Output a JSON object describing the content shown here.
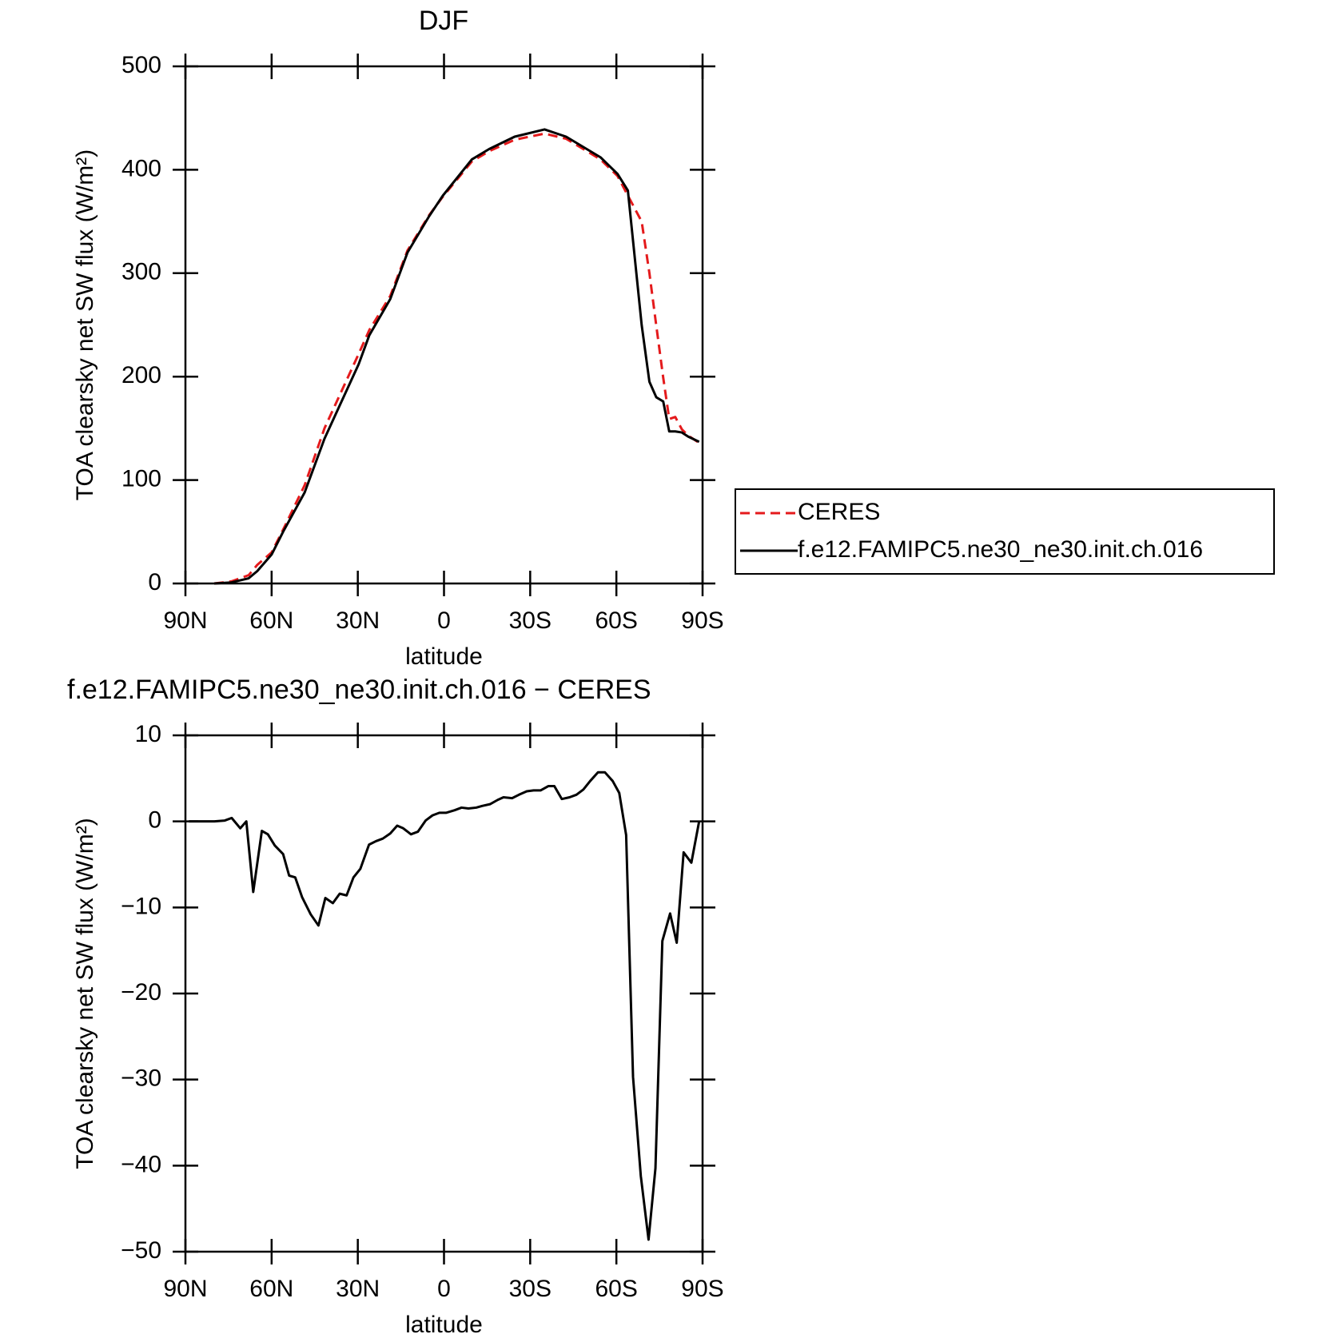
{
  "chart_data": [
    {
      "type": "line",
      "title": "DJF",
      "xlabel": "latitude",
      "ylabel": "TOA clearsky net SW flux (W/m²)",
      "x": [
        80,
        74,
        68,
        65,
        60,
        56,
        48.5,
        41.6,
        35,
        29.7,
        26,
        18.7,
        12.7,
        5.2,
        0.4,
        -9.7,
        -15.7,
        -24.6,
        -35,
        -42.5,
        -54.5,
        -60.4,
        -64,
        -68.8,
        -71.5,
        -73.9,
        -76.3,
        -78.4,
        -80.5,
        -82.8,
        -85,
        -88.8
      ],
      "series": [
        {
          "name": "CERES",
          "color": "#e41a1c",
          "dashed": true,
          "values": [
            0,
            2,
            8,
            18,
            30,
            52,
            95,
            150,
            190,
            222,
            245,
            278,
            322,
            356,
            374,
            408,
            418,
            429,
            435,
            430,
            410,
            394,
            375,
            350,
            300,
            249,
            199,
            159,
            161,
            149,
            143,
            136
          ]
        },
        {
          "name": "f.e12.FAMIPC5.ne30_ne30.init.ch.016",
          "color": "#000000",
          "dashed": false,
          "values": [
            0,
            1,
            5,
            12,
            28,
            50,
            88,
            140,
            180,
            212,
            240,
            275,
            320,
            355,
            375,
            410,
            420,
            432,
            439,
            432,
            412,
            396,
            380,
            250,
            195,
            180,
            176,
            147,
            147,
            146,
            142,
            137
          ]
        }
      ],
      "xlim": [
        90,
        -90
      ],
      "xticks": [
        {
          "value": 90,
          "label": "90N"
        },
        {
          "value": 60,
          "label": "60N"
        },
        {
          "value": 30,
          "label": "30N"
        },
        0,
        {
          "value": -30,
          "label": "30S"
        },
        {
          "value": -60,
          "label": "60S"
        },
        {
          "value": -90,
          "label": "90S"
        }
      ],
      "ylim": [
        0,
        500
      ],
      "yticks": [
        0,
        100,
        200,
        300,
        400,
        500
      ],
      "legend": "right"
    },
    {
      "type": "line",
      "title": "f.e12.FAMIPC5.ne30_ne30.init.ch.016 − CERES",
      "xlabel": "latitude",
      "ylabel": "TOA clearsky net SW flux (W/m²)",
      "x": [
        88.8,
        79.9,
        76.3,
        73.9,
        70.9,
        68.8,
        66.4,
        63.4,
        61.3,
        58.9,
        56,
        53.9,
        51.8,
        49.4,
        46.4,
        43.7,
        41.3,
        38.7,
        36.3,
        33.9,
        31.5,
        29.1,
        26.1,
        23.7,
        21.3,
        18.7,
        16.3,
        14.2,
        11.5,
        9.1,
        6.4,
        4,
        1.6,
        -0.7,
        -3.7,
        -6.1,
        -8.5,
        -11.2,
        -13.3,
        -16,
        -18.7,
        -20.7,
        -23.7,
        -26.1,
        -28.8,
        -31.2,
        -33.6,
        -36.3,
        -38.4,
        -41,
        -43.7,
        -46.1,
        -48.5,
        -50.9,
        -53.6,
        -56,
        -58.7,
        -61,
        -63.4,
        -65.8,
        -68.5,
        -71.2,
        -73.6,
        -76,
        -78.7,
        -81,
        -83.4,
        -86.1,
        -88.8
      ],
      "series": [
        {
          "color": "#000000",
          "dashed": false,
          "values": [
            0,
            0,
            0.1,
            0.4,
            -0.8,
            0,
            -8.2,
            -1.1,
            -1.5,
            -2.8,
            -3.8,
            -6.3,
            -6.5,
            -8.8,
            -10.8,
            -12.1,
            -8.9,
            -9.5,
            -8.4,
            -8.6,
            -6.5,
            -5.5,
            -2.7,
            -2.3,
            -2.0,
            -1.4,
            -0.5,
            -0.8,
            -1.5,
            -1.2,
            0.1,
            0.7,
            1.0,
            1.0,
            1.3,
            1.6,
            1.5,
            1.6,
            1.8,
            2.0,
            2.5,
            2.8,
            2.7,
            3.1,
            3.5,
            3.6,
            3.6,
            4.1,
            4.1,
            2.6,
            2.8,
            3.1,
            3.7,
            4.7,
            5.7,
            5.7,
            4.7,
            3.3,
            -1.6,
            -29.7,
            -41.2,
            -48.6,
            -40.3,
            -13.9,
            -10.7,
            -14.1,
            -3.6,
            -4.8,
            0
          ]
        }
      ],
      "xlim": [
        90,
        -90
      ],
      "xticks": [
        {
          "value": 90,
          "label": "90N"
        },
        {
          "value": 60,
          "label": "60N"
        },
        {
          "value": 30,
          "label": "30N"
        },
        0,
        {
          "value": -30,
          "label": "30S"
        },
        {
          "value": -60,
          "label": "60S"
        },
        {
          "value": -90,
          "label": "90S"
        }
      ],
      "ylim": [
        -50,
        10
      ],
      "yticks": [
        {
          "value": -50,
          "label": "−50"
        },
        {
          "value": -40,
          "label": "−40"
        },
        {
          "value": -30,
          "label": "−30"
        },
        {
          "value": -20,
          "label": "−20"
        },
        {
          "value": -10,
          "label": "−10"
        },
        0,
        10
      ]
    }
  ]
}
